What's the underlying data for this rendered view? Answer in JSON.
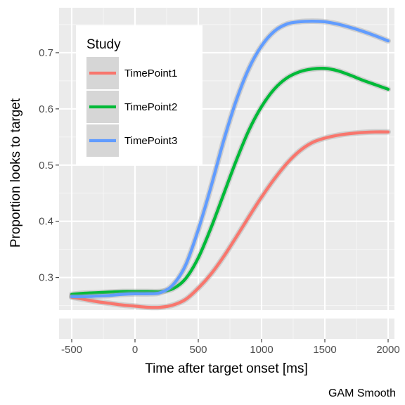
{
  "chart_data": {
    "type": "line",
    "title": "",
    "xlabel": "Time after target onset [ms]",
    "ylabel": "Proportion looks to target",
    "caption": "GAM Smooth",
    "xlim": [
      -600,
      2050
    ],
    "ylim": [
      0.242,
      0.78
    ],
    "x_ticks": [
      -500,
      0,
      500,
      1000,
      1500,
      2000
    ],
    "x_tick_labels": [
      "-500",
      "0",
      "500",
      "1000",
      "1500",
      "2000"
    ],
    "y_ticks": [
      0.3,
      0.4,
      0.5,
      0.6,
      0.7
    ],
    "y_tick_labels": [
      "0.3",
      "0.4",
      "0.5",
      "0.6",
      "0.7"
    ],
    "grid": true,
    "legend": {
      "title": "Study",
      "placement": "top-left",
      "entries": [
        "TimePoint1",
        "TimePoint2",
        "TimePoint3"
      ]
    },
    "series": [
      {
        "name": "TimePoint1",
        "color": "#F8766D",
        "x": [
          -500,
          -400,
          -300,
          -200,
          -100,
          0,
          100,
          200,
          300,
          400,
          500,
          600,
          700,
          800,
          900,
          1000,
          1100,
          1200,
          1300,
          1400,
          1500,
          1600,
          1700,
          1800,
          1900,
          2000
        ],
        "y": [
          0.265,
          0.261,
          0.257,
          0.254,
          0.251,
          0.249,
          0.247,
          0.247,
          0.251,
          0.261,
          0.281,
          0.306,
          0.337,
          0.372,
          0.408,
          0.443,
          0.475,
          0.503,
          0.525,
          0.54,
          0.548,
          0.553,
          0.556,
          0.558,
          0.559,
          0.559
        ]
      },
      {
        "name": "TimePoint2",
        "color": "#00BA38",
        "x": [
          -500,
          -400,
          -300,
          -200,
          -100,
          0,
          100,
          200,
          300,
          400,
          500,
          600,
          700,
          800,
          900,
          1000,
          1100,
          1200,
          1300,
          1400,
          1500,
          1600,
          1700,
          1800,
          1900,
          2000
        ],
        "y": [
          0.27,
          0.272,
          0.273,
          0.274,
          0.275,
          0.275,
          0.275,
          0.275,
          0.28,
          0.298,
          0.335,
          0.388,
          0.448,
          0.508,
          0.562,
          0.604,
          0.635,
          0.655,
          0.666,
          0.671,
          0.672,
          0.668,
          0.66,
          0.651,
          0.643,
          0.635
        ]
      },
      {
        "name": "TimePoint3",
        "color": "#619CFF",
        "x": [
          -500,
          -400,
          -300,
          -200,
          -100,
          0,
          100,
          200,
          300,
          400,
          500,
          600,
          700,
          800,
          900,
          1000,
          1100,
          1200,
          1300,
          1400,
          1500,
          1600,
          1700,
          1800,
          1900,
          2000
        ],
        "y": [
          0.266,
          0.266,
          0.267,
          0.268,
          0.27,
          0.271,
          0.271,
          0.273,
          0.287,
          0.322,
          0.385,
          0.461,
          0.543,
          0.615,
          0.672,
          0.712,
          0.738,
          0.751,
          0.755,
          0.756,
          0.755,
          0.751,
          0.745,
          0.738,
          0.73,
          0.721
        ]
      }
    ]
  }
}
